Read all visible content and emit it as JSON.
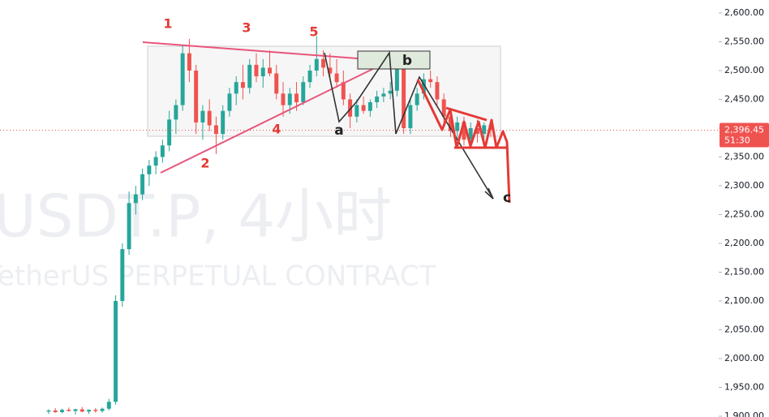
{
  "chart_data": {
    "type": "candlestick",
    "watermark": "USDT.P, 4小时",
    "watermark_subtitle": "TetherUS PERPETUAL CONTRACT",
    "wave_labels": [
      "1",
      "2",
      "3",
      "4",
      "5"
    ],
    "correction_labels": [
      "a",
      "b",
      "c"
    ],
    "up_color": "#26a69a",
    "down_color": "#ef5350",
    "ylim": [
      1898.6,
      2622.5
    ],
    "yticks": [
      {
        "value": 1900,
        "label": "1,900.00"
      },
      {
        "value": 1950,
        "label": "1,950.00"
      },
      {
        "value": 2000,
        "label": "2,000.00"
      },
      {
        "value": 2050,
        "label": "2,050.00"
      },
      {
        "value": 2100,
        "label": "2,100.00"
      },
      {
        "value": 2150,
        "label": "2,150.00"
      },
      {
        "value": 2200,
        "label": "2,200.00"
      },
      {
        "value": 2250,
        "label": "2,250.00"
      },
      {
        "value": 2300,
        "label": "2,300.00"
      },
      {
        "value": 2350,
        "label": "2,350.00"
      },
      {
        "value": 2400,
        "label": "2,400.00"
      },
      {
        "value": 2450,
        "label": "2,450.00"
      },
      {
        "value": 2500,
        "label": "2,500.00"
      },
      {
        "value": 2550,
        "label": "2,550.00"
      },
      {
        "value": 2600,
        "label": "2,600.00"
      }
    ],
    "last_price": {
      "value": 2396.45,
      "label": "2,396.45"
    },
    "countdown": "51:30",
    "ohlc": [
      [
        1908,
        1912,
        1904,
        1910
      ],
      [
        1910,
        1914,
        1906,
        1907
      ],
      [
        1907,
        1913,
        1905,
        1911
      ],
      [
        1911,
        1915,
        1908,
        1909
      ],
      [
        1909,
        1913,
        1903,
        1912
      ],
      [
        1912,
        1916,
        1907,
        1908
      ],
      [
        1908,
        1912,
        1904,
        1911
      ],
      [
        1911,
        1914,
        1906,
        1909
      ],
      [
        1909,
        1915,
        1906,
        1913
      ],
      [
        1913,
        1930,
        1910,
        1925
      ],
      [
        1925,
        2110,
        1920,
        2100
      ],
      [
        2100,
        2200,
        2090,
        2190
      ],
      [
        2190,
        2290,
        2180,
        2270
      ],
      [
        2270,
        2300,
        2250,
        2285
      ],
      [
        2285,
        2330,
        2275,
        2320
      ],
      [
        2320,
        2345,
        2300,
        2335
      ],
      [
        2335,
        2360,
        2320,
        2350
      ],
      [
        2350,
        2380,
        2340,
        2370
      ],
      [
        2370,
        2430,
        2360,
        2415
      ],
      [
        2415,
        2450,
        2390,
        2440
      ],
      [
        2440,
        2545,
        2430,
        2530
      ],
      [
        2530,
        2555,
        2480,
        2500
      ],
      [
        2500,
        2510,
        2390,
        2410
      ],
      [
        2410,
        2440,
        2380,
        2430
      ],
      [
        2430,
        2450,
        2395,
        2405
      ],
      [
        2405,
        2420,
        2355,
        2390
      ],
      [
        2390,
        2440,
        2380,
        2430
      ],
      [
        2430,
        2470,
        2420,
        2460
      ],
      [
        2460,
        2490,
        2440,
        2480
      ],
      [
        2480,
        2510,
        2450,
        2470
      ],
      [
        2470,
        2520,
        2460,
        2510
      ],
      [
        2510,
        2530,
        2480,
        2490
      ],
      [
        2490,
        2520,
        2470,
        2505
      ],
      [
        2505,
        2535,
        2490,
        2495
      ],
      [
        2495,
        2510,
        2450,
        2460
      ],
      [
        2460,
        2480,
        2420,
        2440
      ],
      [
        2440,
        2470,
        2425,
        2460
      ],
      [
        2460,
        2480,
        2430,
        2445
      ],
      [
        2445,
        2490,
        2440,
        2480
      ],
      [
        2480,
        2510,
        2470,
        2500
      ],
      [
        2500,
        2560,
        2490,
        2520
      ],
      [
        2520,
        2535,
        2490,
        2505
      ],
      [
        2505,
        2530,
        2485,
        2495
      ],
      [
        2495,
        2520,
        2470,
        2480
      ],
      [
        2480,
        2500,
        2440,
        2450
      ],
      [
        2450,
        2460,
        2400,
        2420
      ],
      [
        2420,
        2450,
        2410,
        2440
      ],
      [
        2440,
        2455,
        2425,
        2430
      ],
      [
        2430,
        2450,
        2420,
        2445
      ],
      [
        2445,
        2465,
        2435,
        2455
      ],
      [
        2455,
        2470,
        2445,
        2460
      ],
      [
        2460,
        2480,
        2450,
        2465
      ],
      [
        2465,
        2525,
        2455,
        2510
      ],
      [
        2510,
        2515,
        2390,
        2400
      ],
      [
        2400,
        2450,
        2390,
        2440
      ],
      [
        2440,
        2470,
        2430,
        2460
      ],
      [
        2460,
        2495,
        2450,
        2485
      ],
      [
        2485,
        2500,
        2470,
        2480
      ],
      [
        2480,
        2490,
        2440,
        2450
      ],
      [
        2450,
        2460,
        2410,
        2420
      ],
      [
        2420,
        2435,
        2385,
        2395
      ],
      [
        2395,
        2420,
        2380,
        2410
      ],
      [
        2410,
        2420,
        2370,
        2380
      ],
      [
        2380,
        2410,
        2370,
        2400
      ],
      [
        2400,
        2415,
        2375,
        2390
      ],
      [
        2390,
        2410,
        2380,
        2405
      ],
      [
        2405,
        2415,
        2385,
        2396.45
      ]
    ]
  }
}
